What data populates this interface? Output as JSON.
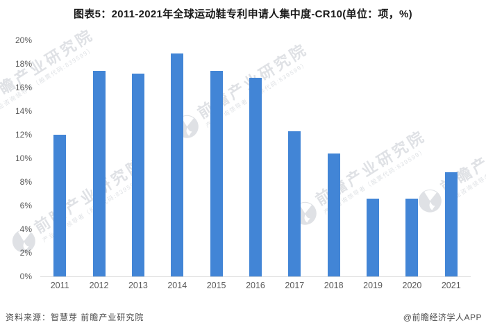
{
  "title": "图表5：2011-2021年全球运动鞋专利申请人集中度-CR10(单位：项，%)",
  "chart_data": {
    "type": "bar",
    "title": "图表5：2011-2021年全球运动鞋专利申请人集中度-CR10(单位：项，%)",
    "categories": [
      "2011",
      "2012",
      "2013",
      "2014",
      "2015",
      "2016",
      "2017",
      "2018",
      "2019",
      "2020",
      "2021"
    ],
    "values": [
      12.0,
      17.4,
      17.2,
      18.9,
      17.4,
      16.8,
      12.3,
      10.4,
      6.6,
      6.6,
      8.8
    ],
    "unit": "%",
    "xlabel": "",
    "ylabel": "",
    "ylim": [
      0,
      20
    ],
    "ytick_step": 2,
    "ytick_labels": [
      "0%",
      "2%",
      "4%",
      "6%",
      "8%",
      "10%",
      "12%",
      "14%",
      "16%",
      "18%",
      "20%"
    ],
    "grid": false,
    "legend": "none",
    "bar_color": "#4285d6"
  },
  "watermark": {
    "logo": "qianzhan-circle-logo",
    "text": "前瞻产业研究院",
    "subtext": "产业咨询领导者（股票代码:839599）"
  },
  "footer": {
    "source": "资料来源：智慧芽 前瞻产业研究院",
    "credit": "@前瞻经济学人APP"
  },
  "colors": {
    "bar": "#4285d6",
    "axis_line": "#d9d9d9",
    "tick_text": "#595959",
    "title_text": "#1a1a1a",
    "footer_text": "#4d4d4d",
    "watermark": "#c5cad0"
  }
}
